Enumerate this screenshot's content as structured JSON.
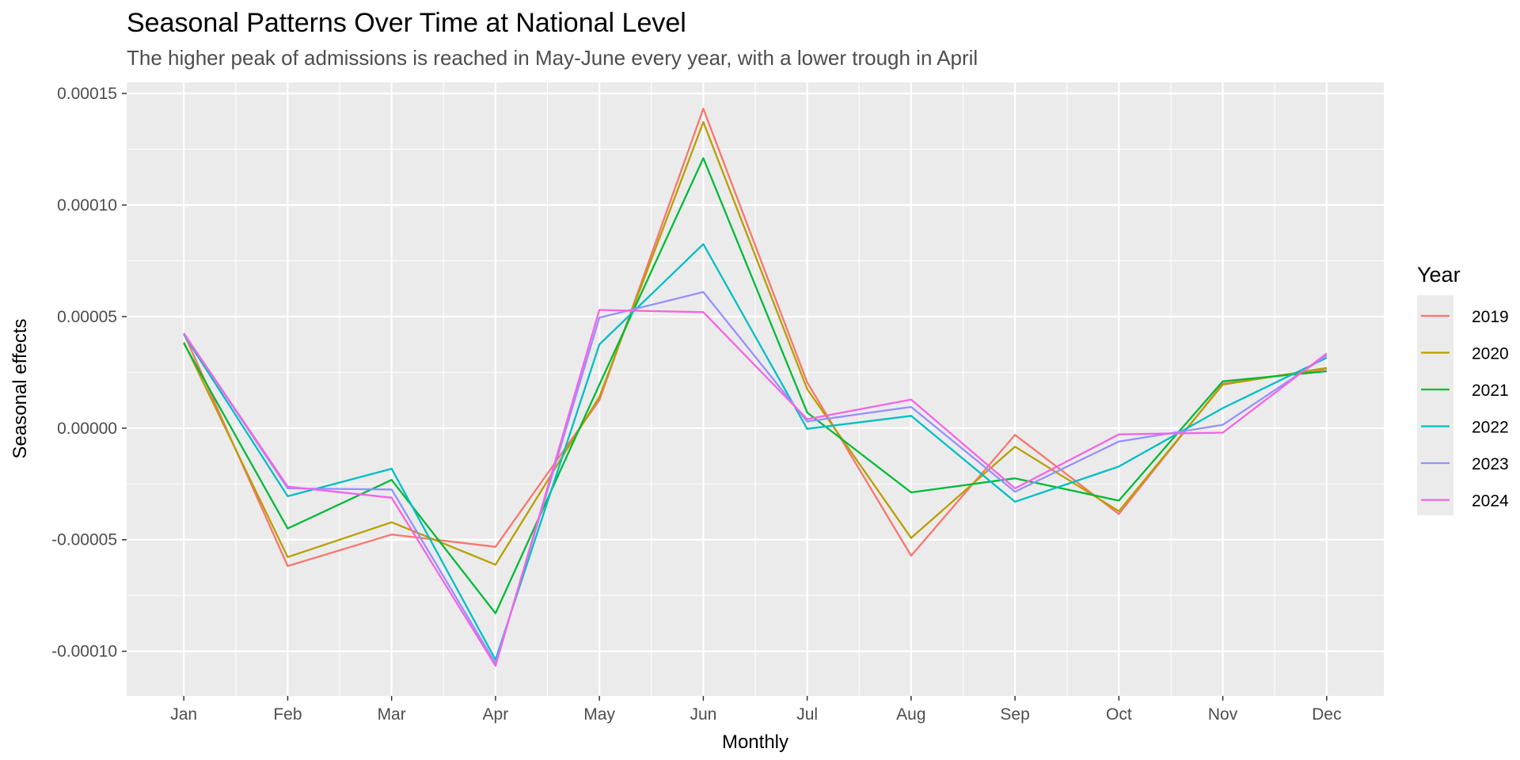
{
  "chart_data": {
    "type": "line",
    "title": "Seasonal Patterns Over Time at National Level",
    "subtitle": "The higher peak of admissions is reached in May-June every year, with a lower trough in April",
    "xlabel": "Monthly",
    "ylabel": "Seasonal effects",
    "categories": [
      "Jan",
      "Feb",
      "Mar",
      "Apr",
      "May",
      "Jun",
      "Jul",
      "Aug",
      "Sep",
      "Oct",
      "Nov",
      "Dec"
    ],
    "ylim": [
      -0.00012,
      0.000155
    ],
    "yticks": [
      -0.0001,
      -5e-05,
      0,
      5e-05,
      0.0001,
      0.00015
    ],
    "ytick_labels": [
      "-0.00010",
      "-0.00005",
      "0.00000",
      "0.00005",
      "0.00010",
      "0.00015"
    ],
    "grid": true,
    "legend": {
      "title": "Year",
      "position": "right"
    },
    "series": [
      {
        "name": "2019",
        "color": "#F8766D",
        "values": [
          4.25e-05,
          -6.18e-05,
          -4.77e-05,
          -5.32e-05,
          1.25e-05,
          0.0001432,
          2.05e-05,
          -5.72e-05,
          -3e-06,
          -3.85e-05,
          2e-05,
          2.65e-05
        ]
      },
      {
        "name": "2020",
        "color": "#B79F00",
        "values": [
          3.85e-05,
          -5.78e-05,
          -4.22e-05,
          -6.12e-05,
          1.4e-05,
          0.0001372,
          1.75e-05,
          -4.92e-05,
          -8.3e-06,
          -3.72e-05,
          1.95e-05,
          2.7e-05
        ]
      },
      {
        "name": "2021",
        "color": "#00BA38",
        "values": [
          3.8e-05,
          -4.5e-05,
          -2.32e-05,
          -8.3e-05,
          1.95e-05,
          0.000121,
          7e-06,
          -2.88e-05,
          -2.25e-05,
          -3.25e-05,
          2.1e-05,
          2.55e-05
        ]
      },
      {
        "name": "2022",
        "color": "#00BFC4",
        "values": [
          4.2e-05,
          -3.05e-05,
          -1.82e-05,
          -0.0001038,
          3.75e-05,
          8.25e-05,
          -3e-07,
          5.5e-06,
          -3.3e-05,
          -1.72e-05,
          9e-06,
          3.15e-05
        ]
      },
      {
        "name": "2023",
        "color": "#9590FF",
        "values": [
          4.25e-05,
          -2.7e-05,
          -2.75e-05,
          -0.0001055,
          4.95e-05,
          6.1e-05,
          3e-06,
          9.5e-06,
          -2.85e-05,
          -6e-06,
          1.5e-06,
          3.25e-05
        ]
      },
      {
        "name": "2024",
        "color": "#F564E3",
        "values": [
          4.25e-05,
          -2.62e-05,
          -3.12e-05,
          -0.0001065,
          5.3e-05,
          5.2e-05,
          4e-06,
          1.28e-05,
          -2.7e-05,
          -2.8e-06,
          -2e-06,
          3.35e-05
        ]
      }
    ]
  }
}
